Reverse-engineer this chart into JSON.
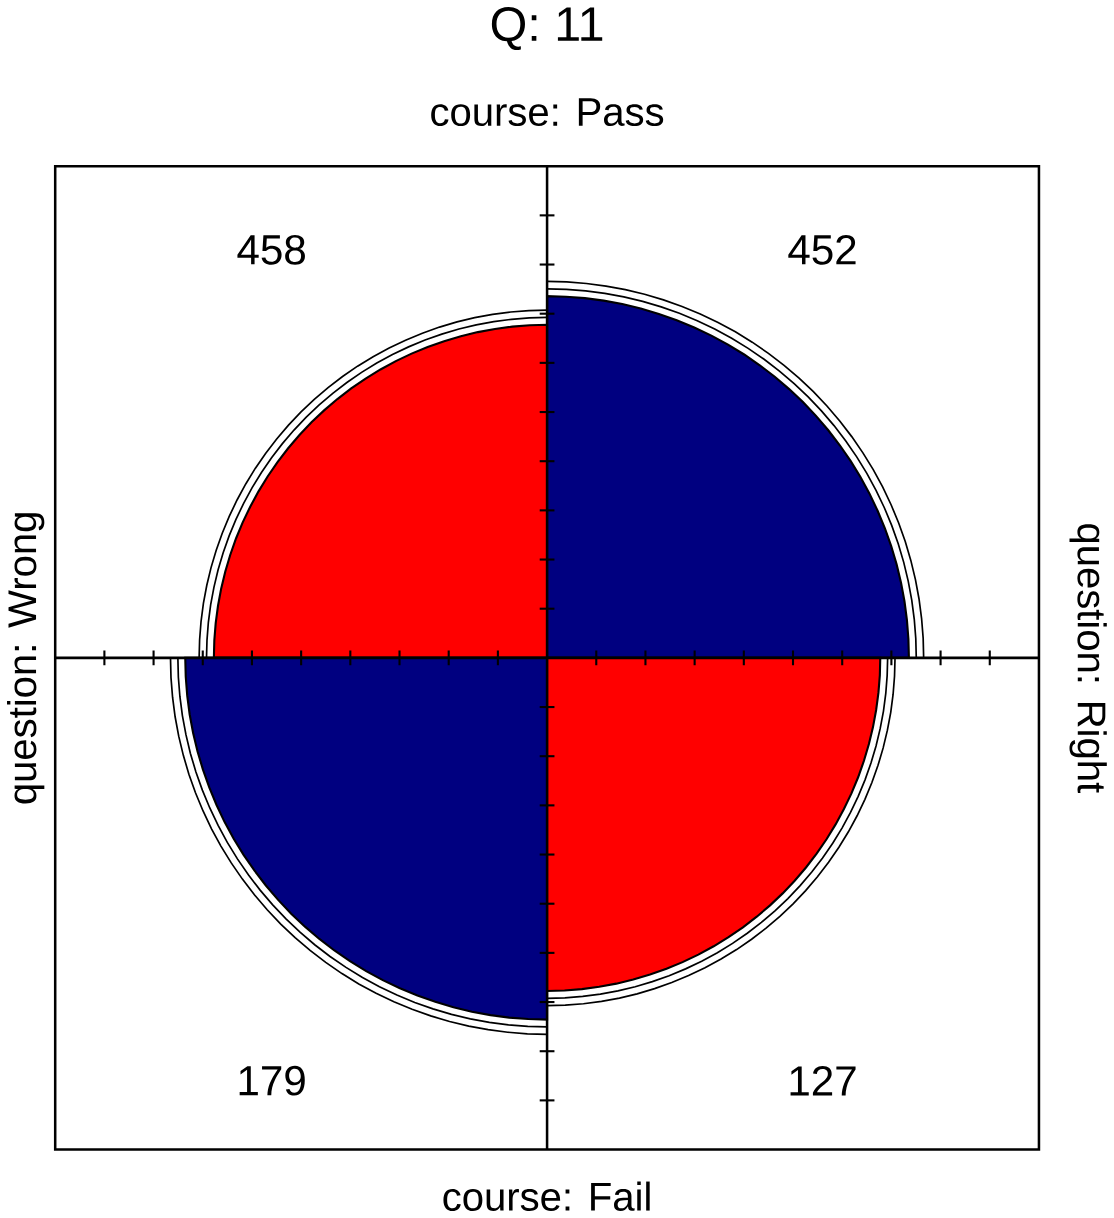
{
  "chart_data": {
    "type": "other",
    "title": "Q: 11",
    "categories": [
      null,
      null,
      null,
      null
    ],
    "values": [
      458,
      452,
      179,
      127
    ],
    "value_labels": [
      "458",
      "452",
      "179",
      "127"
    ],
    "colors": [
      "#ff0000",
      "#000080",
      "#000080",
      "#ff0000"
    ],
    "annotations": [
      "course: Pass",
      "course: Fail",
      "question: Wrong",
      "question: Right"
    ]
  }
}
